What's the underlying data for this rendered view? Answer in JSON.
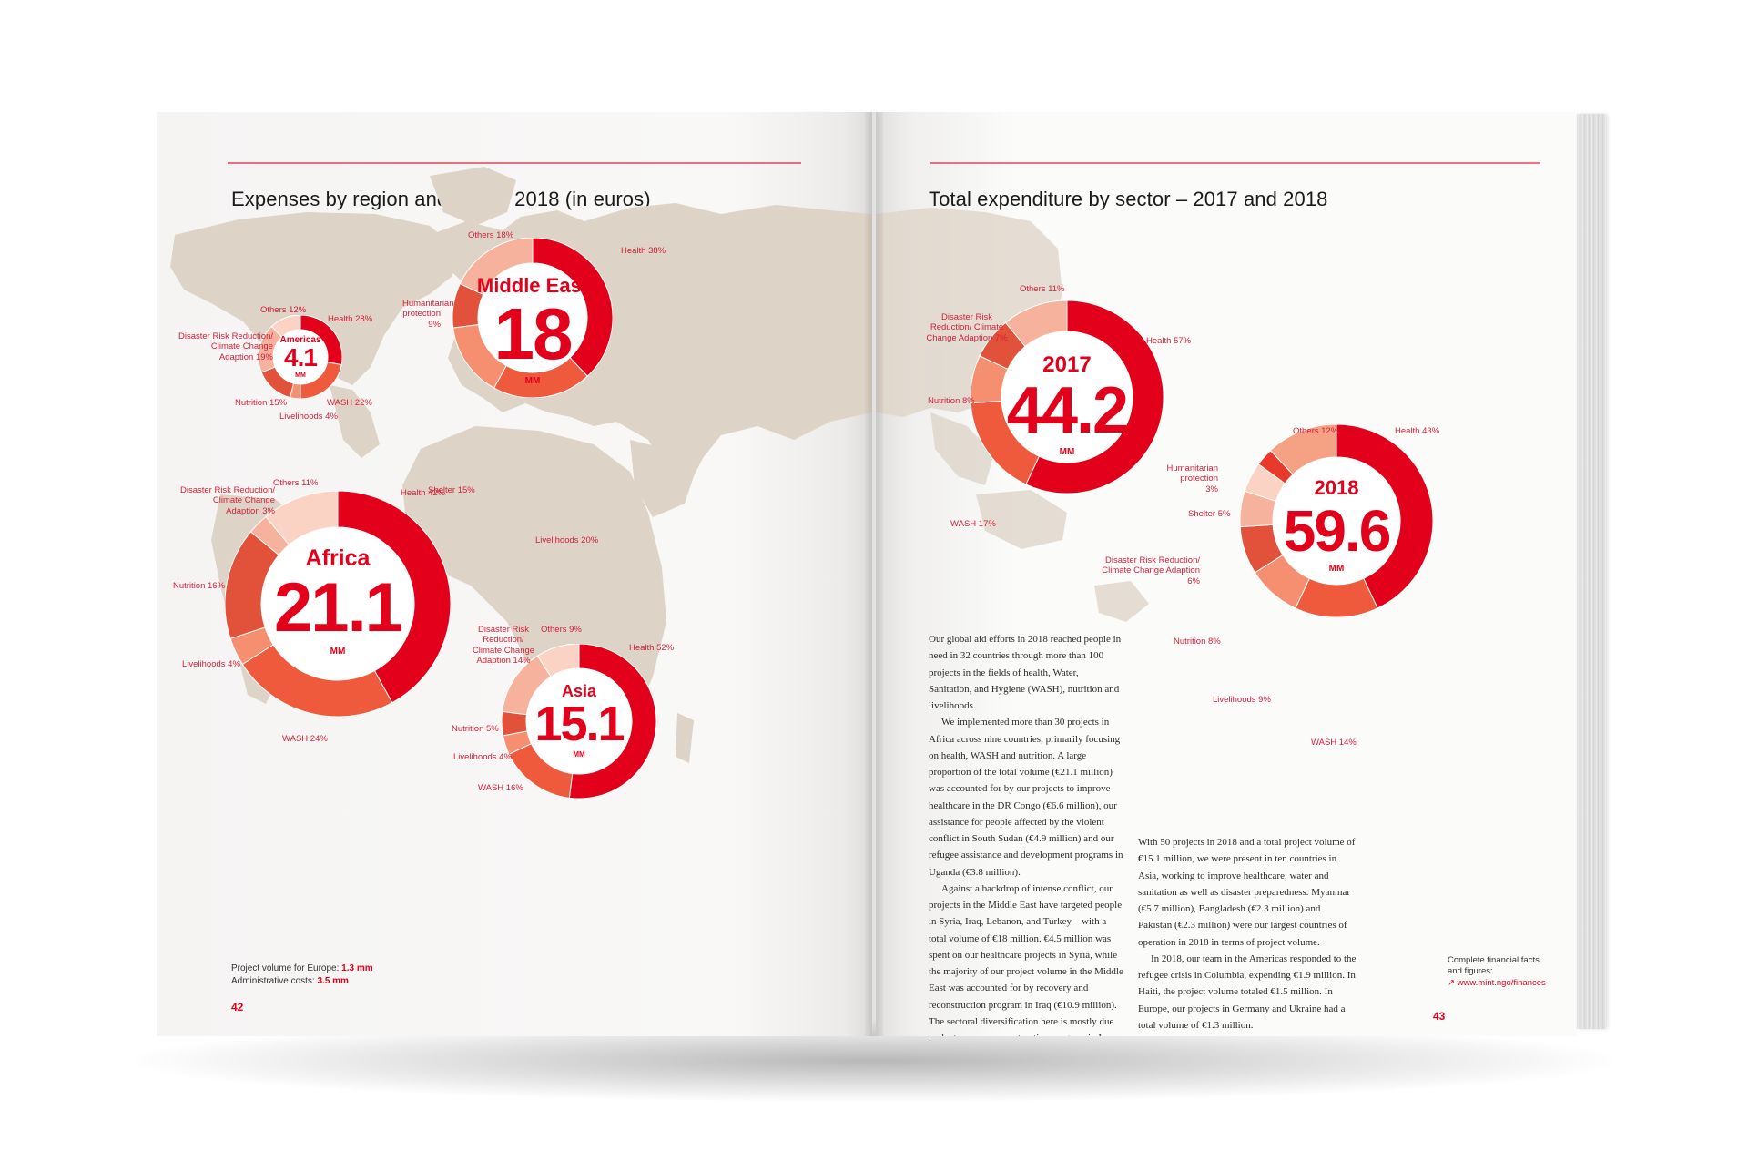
{
  "left_page": {
    "heading": "Expenses by region and sector 2018 (in euros)",
    "page_number": "42",
    "notes": {
      "europe_label": "Project volume for Europe:",
      "europe_value": "1.3 mm",
      "admin_label": "Administrative costs:",
      "admin_value": "3.5 mm"
    }
  },
  "right_page": {
    "heading": "Total expenditure by sector – 2017 and 2018",
    "page_number": "43",
    "finance_note": "Complete financial facts",
    "finance_note2": "and figures:",
    "finance_link": "www.mint.ngo/finances",
    "col1": [
      "Our global aid efforts in 2018 reached people in need in 32 countries through more than 100 projects in the fields of health, Water, Sanitation, and Hygiene (WASH), nutrition and livelihoods.",
      "We implemented more than 30 projects in Africa across nine countries, primarily focusing on health, WASH and nutrition. A large proportion of the total volume (€21.1 million) was accounted for by our projects to improve healthcare in the DR Congo (€6.6 million), our assistance for people affected by the violent conflict in South Sudan (€4.9 million) and our refugee assistance and development programs in Uganda (€3.8 million).",
      "Against a backdrop of intense conflict, our projects in the Middle East have targeted people in Syria, Iraq, Lebanon, and Turkey – with a total volume of €18 million. €4.5 million was spent on our healthcare projects in Syria, while the majority of our project volume in the Middle East was accounted for by recovery and reconstruction program in Iraq (€10.9 million). The sectoral diversification here is mostly due to the two-year reconstruction program in Iraq, and reflects a temporary shift: from traditional areas of emergency aid – such as healthcare – to initiatives aimed at recovery like improving livelihoods and rebuilding infrastructure."
    ],
    "col2": [
      "With 50 projects in 2018 and a total project volume of €15.1 million, we were present in ten countries in Asia, working to improve healthcare, water and sanitation as well as disaster preparedness. Myanmar (€5.7 million), Bangladesh (€2.3 million) and Pakistan (€2.3 million) were our largest countries of operation in 2018 in terms of project volume.",
      "In 2018, our team in the Americas responded to the refugee crisis in Columbia, expending €1.9 million. In Haiti, the project volume totaled €1.5 million. In Europe, our projects in Germany and Ukraine had a total volume of €1.3 million."
    ]
  },
  "chart_data": [
    {
      "type": "pie",
      "region": "Middle East",
      "total": "18",
      "unit": "MM",
      "slices": [
        {
          "label": "Health 38%",
          "value": 38
        },
        {
          "label": "Livelihoods 20%",
          "value": 20
        },
        {
          "label": "Shelter 15%",
          "value": 15
        },
        {
          "label": "Humanitarian protection 9%",
          "value": 9
        },
        {
          "label": "Others 18%",
          "value": 18
        }
      ]
    },
    {
      "type": "pie",
      "region": "Americas",
      "total": "4.1",
      "unit": "MM",
      "slices": [
        {
          "label": "Health 28%",
          "value": 28
        },
        {
          "label": "WASH 22%",
          "value": 22
        },
        {
          "label": "Livelihoods 4%",
          "value": 4
        },
        {
          "label": "Nutrition 15%",
          "value": 15
        },
        {
          "label": "Disaster Risk Reduction/ Climate Change Adaption 19%",
          "value": 19
        },
        {
          "label": "Others 12%",
          "value": 12
        }
      ]
    },
    {
      "type": "pie",
      "region": "Africa",
      "total": "21.1",
      "unit": "MM",
      "slices": [
        {
          "label": "Health 42%",
          "value": 42
        },
        {
          "label": "WASH 24%",
          "value": 24
        },
        {
          "label": "Livelihoods 4%",
          "value": 4
        },
        {
          "label": "Nutrition 16%",
          "value": 16
        },
        {
          "label": "Disaster Risk Reduction/ Climate Change Adaption 3%",
          "value": 3
        },
        {
          "label": "Others 11%",
          "value": 11
        }
      ]
    },
    {
      "type": "pie",
      "region": "Asia",
      "total": "15.1",
      "unit": "MM",
      "slices": [
        {
          "label": "Health 52%",
          "value": 52
        },
        {
          "label": "WASH 16%",
          "value": 16
        },
        {
          "label": "Livelihoods 4%",
          "value": 4
        },
        {
          "label": "Nutrition 5%",
          "value": 5
        },
        {
          "label": "Disaster Risk Reduction/ Climate Change Adaption 14%",
          "value": 14
        },
        {
          "label": "Others 9%",
          "value": 9
        }
      ]
    },
    {
      "type": "pie",
      "region": "2017",
      "total": "44.2",
      "unit": "MM",
      "slices": [
        {
          "label": "Health 57%",
          "value": 57
        },
        {
          "label": "WASH 17%",
          "value": 17
        },
        {
          "label": "Nutrition 8%",
          "value": 8
        },
        {
          "label": "Disaster Risk Reduction/ Climate Change Adaption 7%",
          "value": 7
        },
        {
          "label": "Others 11%",
          "value": 11
        }
      ]
    },
    {
      "type": "pie",
      "region": "2018",
      "total": "59.6",
      "unit": "MM",
      "slices": [
        {
          "label": "Health 43%",
          "value": 43
        },
        {
          "label": "WASH 14%",
          "value": 14
        },
        {
          "label": "Livelihoods 9%",
          "value": 9
        },
        {
          "label": "Nutrition 8%",
          "value": 8
        },
        {
          "label": "Disaster Risk Reduction/ Climate Change Adaption 6%",
          "value": 6
        },
        {
          "label": "Shelter 5%",
          "value": 5
        },
        {
          "label": "Humanitarian protection 3%",
          "value": 3
        },
        {
          "label": "Others 12%",
          "value": 12
        }
      ]
    }
  ],
  "colors": {
    "accent": "#e2001a",
    "palette": [
      "#e2001a",
      "#ef5a3c",
      "#f58f70",
      "#e2523a",
      "#f6b29c",
      "#fbd3c4",
      "#e8392a",
      "#f4a184"
    ],
    "map": "#ddd3c6"
  }
}
